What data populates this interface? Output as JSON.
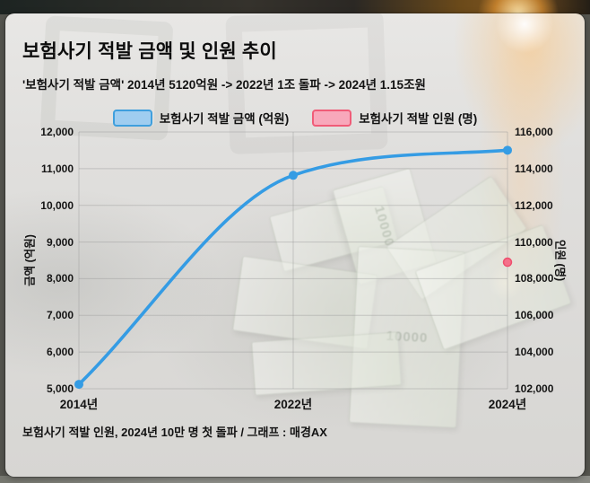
{
  "header": {
    "title": "보험사기 적발 금액 및 인원 추이",
    "subtitle": "'보험사기 적발 금액' 2014년 5120억원 -> 2022년 1조 돌파 -> 2024년 1.15조원"
  },
  "footer": {
    "note": "보험사기 적발 인원, 2024년 10만 명 첫 돌파 / 그래프 : 매경AX"
  },
  "background": {
    "banknote_label": "10000"
  },
  "colors": {
    "amount_line": "#359ce4",
    "amount_swatch_fill": "#9fcdf0",
    "amount_swatch_border": "#3f9fdd",
    "people_point": "#f5708a",
    "people_point_border": "#ee4e6d",
    "people_swatch_fill": "#f8a8bb",
    "people_swatch_border": "#f05c78",
    "grid": "#9a9a98"
  },
  "chart_data": {
    "type": "line",
    "categories": [
      "2014년",
      "2022년",
      "2024년"
    ],
    "series": [
      {
        "name": "보험사기 적발 금액 (억원)",
        "axis": "left",
        "style": "smooth-line",
        "values": [
          5120,
          10818,
          11502
        ]
      },
      {
        "name": "보험사기 적발 인원 (명)",
        "axis": "right",
        "style": "point",
        "values": [
          null,
          null,
          108900
        ]
      }
    ],
    "left_axis": {
      "label": "금액 (억원)",
      "min": 5000,
      "max": 12000,
      "step": 1000
    },
    "right_axis": {
      "label": "인원 (명)",
      "min": 102000,
      "max": 116000,
      "step": 2000
    },
    "grid": true,
    "legend_position": "top"
  }
}
